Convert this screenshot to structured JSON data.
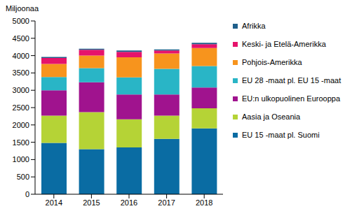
{
  "chart_data": {
    "type": "bar",
    "stacked": true,
    "y_label": "Miljoonaa",
    "categories": [
      "2014",
      "2015",
      "2016",
      "2017",
      "2018"
    ],
    "ylim": [
      0,
      5000
    ],
    "yticks": [
      0,
      500,
      1000,
      1500,
      2000,
      2500,
      3000,
      3500,
      4000,
      4500,
      5000
    ],
    "grid": false,
    "legend": "right",
    "series": [
      {
        "name": "EU 15 -maat pl. Suomi",
        "color": "#0a6ca3",
        "values": [
          1480,
          1300,
          1350,
          1600,
          1900
        ]
      },
      {
        "name": "Aasia ja Oseania",
        "color": "#b5d336",
        "values": [
          790,
          1070,
          810,
          670,
          580
        ]
      },
      {
        "name": "EU:n ulkopuolinen Eurooppa",
        "color": "#a0138e",
        "values": [
          730,
          860,
          720,
          610,
          600
        ]
      },
      {
        "name": "EU 28 -maat pl. EU 15 -maat",
        "color": "#29b5c6",
        "values": [
          380,
          410,
          490,
          740,
          620
        ]
      },
      {
        "name": "Pohjois-Amerikka",
        "color": "#f7941d",
        "values": [
          380,
          360,
          580,
          440,
          520
        ]
      },
      {
        "name": "Keski- ja Etelä-Amerikka",
        "color": "#e6136b",
        "values": [
          170,
          170,
          160,
          90,
          110
        ]
      },
      {
        "name": "Afrikka",
        "color": "#1f5f8b",
        "values": [
          30,
          30,
          40,
          30,
          40
        ]
      }
    ]
  }
}
